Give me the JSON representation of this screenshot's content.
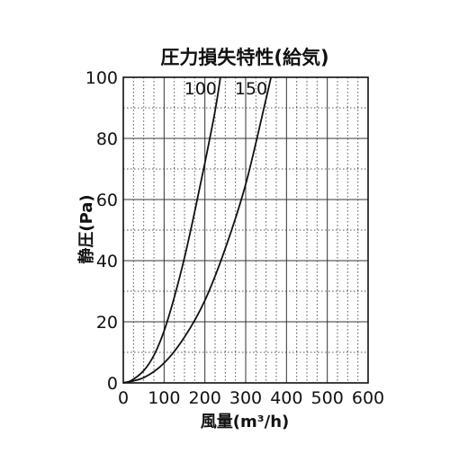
{
  "chart_data": {
    "type": "line",
    "title": "圧力損失特性(給気)",
    "xlabel": "風量(m³/h)",
    "ylabel": "静圧(Pa)",
    "xlim": [
      0,
      600
    ],
    "ylim": [
      0,
      100
    ],
    "grid": {
      "major": true,
      "minor": true
    },
    "x_ticks": [
      {
        "value": 0,
        "label": "0"
      },
      {
        "value": 100,
        "label": "100"
      },
      {
        "value": 200,
        "label": "200"
      },
      {
        "value": 300,
        "label": "300"
      },
      {
        "value": 400,
        "label": "400"
      },
      {
        "value": 500,
        "label": "500"
      },
      {
        "value": 600,
        "label": "600"
      }
    ],
    "y_ticks": [
      {
        "value": 0,
        "label": "0"
      },
      {
        "value": 20,
        "label": "20"
      },
      {
        "value": 40,
        "label": "40"
      },
      {
        "value": 60,
        "label": "60"
      },
      {
        "value": 80,
        "label": "80"
      },
      {
        "value": 100,
        "label": "100"
      }
    ],
    "series": [
      {
        "name": "100",
        "label_position": "top",
        "points": [
          {
            "x": 0,
            "y": 0
          },
          {
            "x": 20,
            "y": 0.8
          },
          {
            "x": 50,
            "y": 4
          },
          {
            "x": 75,
            "y": 9
          },
          {
            "x": 100,
            "y": 17
          },
          {
            "x": 125,
            "y": 28
          },
          {
            "x": 150,
            "y": 41
          },
          {
            "x": 175,
            "y": 56
          },
          {
            "x": 200,
            "y": 72
          },
          {
            "x": 225,
            "y": 89
          },
          {
            "x": 238,
            "y": 100
          }
        ]
      },
      {
        "name": "150",
        "label_position": "top",
        "points": [
          {
            "x": 0,
            "y": 0
          },
          {
            "x": 50,
            "y": 1.7
          },
          {
            "x": 100,
            "y": 6.5
          },
          {
            "x": 150,
            "y": 15
          },
          {
            "x": 200,
            "y": 27
          },
          {
            "x": 250,
            "y": 44
          },
          {
            "x": 300,
            "y": 65
          },
          {
            "x": 350,
            "y": 93
          },
          {
            "x": 362,
            "y": 100
          }
        ]
      }
    ]
  }
}
